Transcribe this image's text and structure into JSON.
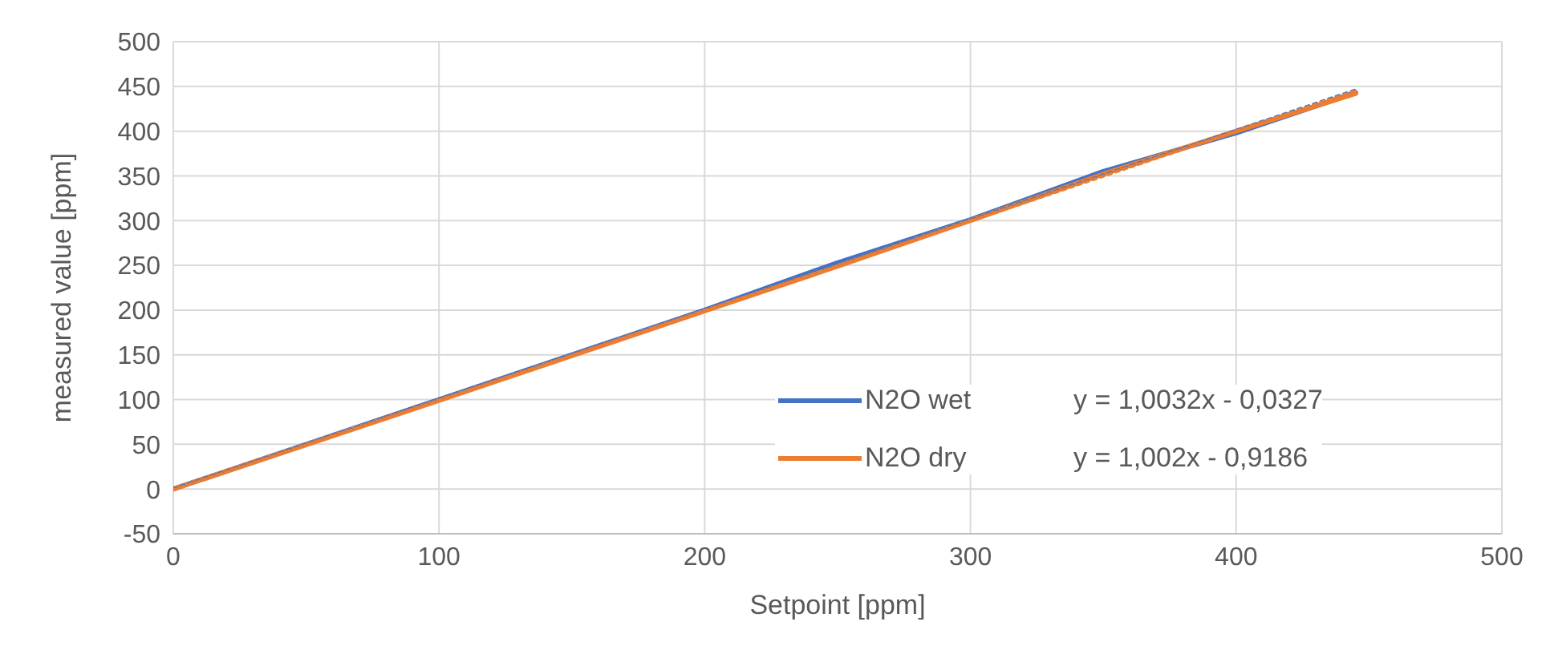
{
  "chart_data": {
    "type": "line",
    "xlabel": "Setpoint [ppm]",
    "ylabel": "measured value [ppm]",
    "xlim": [
      0,
      500
    ],
    "xticks": [
      0,
      100,
      200,
      300,
      400,
      500
    ],
    "ylim": [
      -50,
      500
    ],
    "yticks": [
      -50,
      0,
      50,
      100,
      150,
      200,
      250,
      300,
      350,
      400,
      450,
      500
    ],
    "grid": true,
    "legend": "right",
    "marker": "none",
    "series": [
      {
        "name": "N2O wet",
        "color": "#4472c4",
        "line_style": "solid",
        "x": [
          0,
          100,
          200,
          250,
          300,
          350,
          400,
          445
        ],
        "values": [
          0,
          100,
          200,
          253,
          301,
          355,
          398,
          443
        ]
      },
      {
        "name": "N2O dry",
        "color": "#ed7d31",
        "line_style": "solid",
        "x": [
          0,
          100,
          200,
          250,
          300,
          350,
          400,
          445
        ],
        "values": [
          0,
          99,
          199,
          249,
          300,
          352,
          400,
          442
        ]
      },
      {
        "color": "#4472c4",
        "line_style": "dotted",
        "x": [
          0,
          445
        ],
        "values": [
          0,
          446
        ]
      },
      {
        "color": "#ed7d31",
        "line_style": "dotted",
        "x": [
          0,
          445
        ],
        "values": [
          -1,
          445
        ]
      }
    ],
    "annotations": [
      "y = 1,0032x - 0,0327",
      "y = 1,002x - 0,9186"
    ]
  }
}
